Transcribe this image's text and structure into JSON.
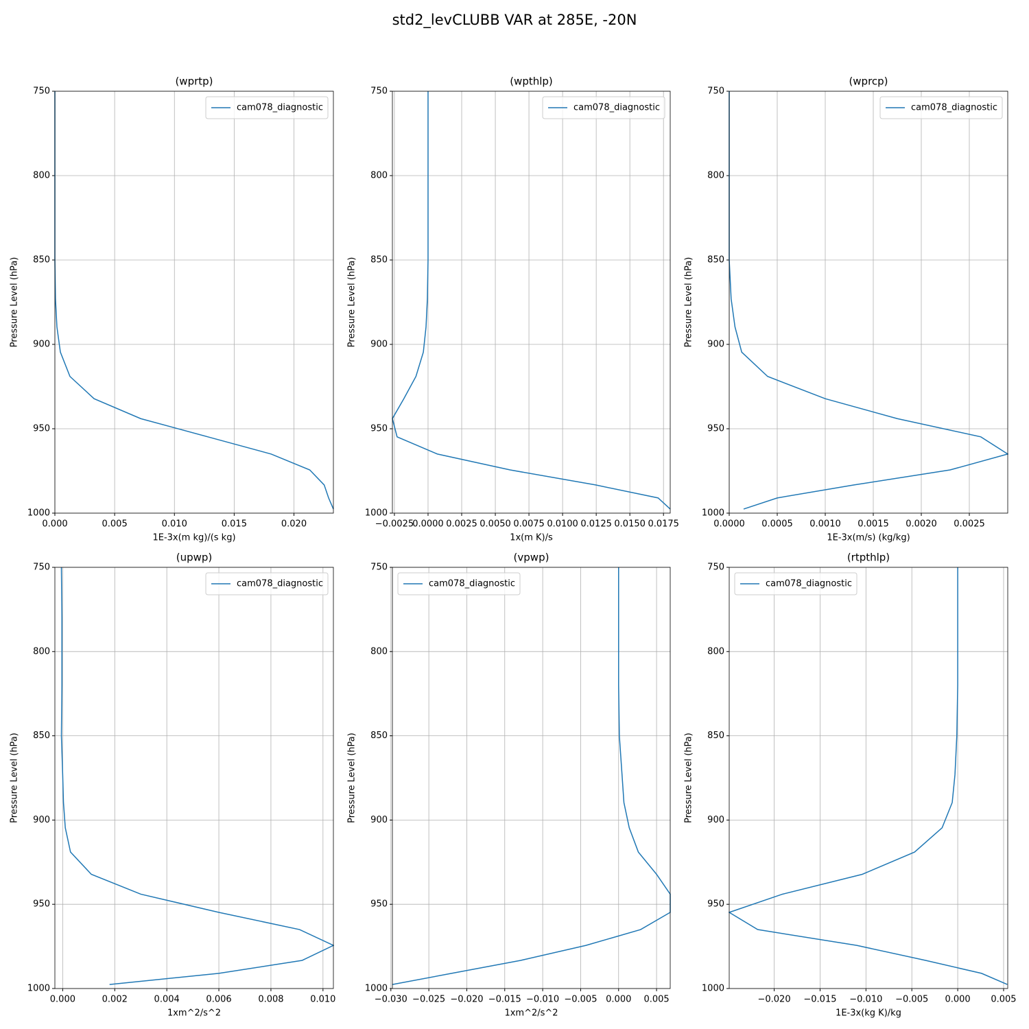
{
  "title": "std2_levCLUBB VAR at 285E, -20N",
  "chart_data": [
    {
      "type": "line",
      "title": "(wprtp)",
      "xlabel": "1E-3x(m kg)/(s kg)",
      "ylabel": "Pressure Level (hPa)",
      "y": [
        997.6,
        991,
        983.3,
        974.4,
        965,
        954.8,
        944,
        932.2,
        919,
        904.6,
        889.6,
        873,
        850,
        820,
        780,
        750
      ],
      "series": [
        {
          "name": "cam078_diagnostic",
          "color": "#1f77b4",
          "values": [
            0.0233,
            0.0229,
            0.02253,
            0.02132,
            0.0181,
            0.0128,
            0.00718,
            0.00328,
            0.00126,
            0.00046,
            0.00017,
            5e-05,
            0,
            0,
            0,
            0
          ]
        }
      ],
      "xlim": [
        0,
        0.0233
      ],
      "xticks": [
        {
          "value": 0,
          "label": "0.000"
        },
        0.005,
        {
          "value": 0.01,
          "label": "0.010"
        },
        0.015,
        {
          "value": 0.02,
          "label": "0.020"
        }
      ],
      "ylim": [
        1000,
        750
      ],
      "yticks": [
        750,
        800,
        850,
        900,
        950,
        1000
      ],
      "grid": true,
      "legend": "upper right"
    },
    {
      "type": "line",
      "title": "(wpthlp)",
      "xlabel": "1x(m K)/s",
      "ylabel": "Pressure Level (hPa)",
      "y": [
        997.6,
        991,
        983.3,
        974.4,
        965,
        954.8,
        944,
        932.2,
        919,
        904.6,
        889.6,
        873,
        850,
        820,
        780,
        750
      ],
      "series": [
        {
          "name": "cam078_diagnostic",
          "color": "#1f77b4",
          "values": [
            0.018,
            0.0171,
            0.01245,
            0.0061,
            0.0007,
            -0.0023,
            -0.00265,
            -0.0018,
            -0.0009,
            -0.00035,
            -0.00015,
            -5e-05,
            0,
            0,
            0,
            0
          ]
        }
      ],
      "xlim": [
        -0.00265,
        0.018
      ],
      "xticks": [
        {
          "value": -0.0025,
          "label": "−0.0025"
        },
        {
          "value": 0,
          "label": "0.0000"
        },
        0.0025,
        {
          "value": 0.005,
          "label": "0.0050"
        },
        0.0075,
        {
          "value": 0.01,
          "label": "0.0100"
        },
        0.0125,
        {
          "value": 0.015,
          "label": "0.0150"
        },
        0.0175
      ],
      "ylim": [
        1000,
        750
      ],
      "yticks": [
        750,
        800,
        850,
        900,
        950,
        1000
      ],
      "grid": true,
      "legend": "upper right"
    },
    {
      "type": "line",
      "title": "(wprcp)",
      "xlabel": "1E-3x(m/s) (kg/kg)",
      "ylabel": "Pressure Level (hPa)",
      "y": [
        997.6,
        991,
        983.3,
        974.4,
        965,
        954.8,
        944,
        932.2,
        919,
        904.6,
        889.6,
        873,
        850,
        820,
        780,
        750
      ],
      "series": [
        {
          "name": "cam078_diagnostic",
          "color": "#1f77b4",
          "values": [
            0.00015,
            0.0005,
            0.0013,
            0.0023,
            0.0029,
            0.00262,
            0.00175,
            0.001,
            0.0004,
            0.00013,
            6e-05,
            2e-05,
            0,
            0,
            0,
            0
          ]
        }
      ],
      "xlim": [
        0,
        0.0029
      ],
      "xticks": [
        {
          "value": 0,
          "label": "0.0000"
        },
        0.0005,
        {
          "value": 0.001,
          "label": "0.0010"
        },
        0.0015,
        {
          "value": 0.002,
          "label": "0.0020"
        },
        0.0025
      ],
      "ylim": [
        1000,
        750
      ],
      "yticks": [
        750,
        800,
        850,
        900,
        950,
        1000
      ],
      "grid": true,
      "legend": "upper right"
    },
    {
      "type": "line",
      "title": "(upwp)",
      "xlabel": "1xm^2/s^2",
      "ylabel": "Pressure Level (hPa)",
      "y": [
        997.6,
        991,
        983.3,
        974.4,
        965,
        954.8,
        944,
        932.2,
        919,
        904.6,
        889.6,
        873,
        850,
        820,
        780,
        750
      ],
      "series": [
        {
          "name": "cam078_diagnostic",
          "color": "#1f77b4",
          "values": [
            0.0018,
            0.006,
            0.0092,
            0.0104,
            0.0091,
            0.006,
            0.003,
            0.0011,
            0.0003,
            0.0001,
            3e-05,
            0,
            -5e-05,
            -3e-05,
            -3e-05,
            -5e-05
          ]
        }
      ],
      "xlim": [
        -0.0003,
        0.0104
      ],
      "xticks": [
        {
          "value": 0,
          "label": "0.000"
        },
        0.002,
        0.004,
        0.006,
        0.008,
        {
          "value": 0.01,
          "label": "0.010"
        }
      ],
      "ylim": [
        1000,
        750
      ],
      "yticks": [
        750,
        800,
        850,
        900,
        950,
        1000
      ],
      "grid": true,
      "legend": "upper right"
    },
    {
      "type": "line",
      "title": "(vpwp)",
      "xlabel": "1xm^2/s^2",
      "ylabel": "Pressure Level (hPa)",
      "y": [
        997.6,
        991,
        983.3,
        974.4,
        965,
        954.8,
        944,
        932.2,
        919,
        904.6,
        889.6,
        873,
        850,
        820,
        780,
        750
      ],
      "series": [
        {
          "name": "cam078_diagnostic",
          "color": "#1f77b4",
          "values": [
            -0.0298,
            -0.022,
            -0.0129,
            -0.0043,
            0.0029,
            0.0068,
            0.0068,
            0.005,
            0.0026,
            0.0014,
            0.0007,
            0.00045,
            0.0001,
            0,
            0,
            0
          ]
        }
      ],
      "xlim": [
        -0.0298,
        0.0068
      ],
      "xticks": [
        {
          "value": -0.03,
          "label": "−0.030"
        },
        {
          "value": -0.025,
          "label": "−0.025"
        },
        {
          "value": -0.02,
          "label": "−0.020"
        },
        {
          "value": -0.015,
          "label": "−0.015"
        },
        {
          "value": -0.01,
          "label": "−0.010"
        },
        {
          "value": -0.005,
          "label": "−0.005"
        },
        {
          "value": 0,
          "label": "0.000"
        },
        0.005
      ],
      "ylim": [
        1000,
        750
      ],
      "yticks": [
        750,
        800,
        850,
        900,
        950,
        1000
      ],
      "grid": true,
      "legend": "upper left"
    },
    {
      "type": "line",
      "title": "(rtpthlp)",
      "xlabel": "1E-3x(kg K)/kg",
      "ylabel": "Pressure Level (hPa)",
      "y": [
        997.6,
        991,
        983.3,
        974.4,
        965,
        954.8,
        944,
        932.2,
        919,
        904.6,
        889.6,
        873,
        850,
        820,
        780,
        750
      ],
      "series": [
        {
          "name": "cam078_diagnostic",
          "color": "#1f77b4",
          "values": [
            0.0054,
            0.0026,
            -0.0035,
            -0.011,
            -0.0218,
            -0.0249,
            -0.0191,
            -0.0104,
            -0.0047,
            -0.0017,
            -0.0006,
            -0.0003,
            -0.0001,
            0,
            0,
            0
          ]
        }
      ],
      "xlim": [
        -0.0249,
        0.00545
      ],
      "xticks": [
        {
          "value": -0.02,
          "label": "−0.020"
        },
        {
          "value": -0.015,
          "label": "−0.015"
        },
        {
          "value": -0.01,
          "label": "−0.010"
        },
        {
          "value": -0.005,
          "label": "−0.005"
        },
        {
          "value": 0,
          "label": "0.000"
        },
        0.005
      ],
      "ylim": [
        1000,
        750
      ],
      "yticks": [
        750,
        800,
        850,
        900,
        950,
        1000
      ],
      "grid": true,
      "legend": "upper left"
    }
  ]
}
